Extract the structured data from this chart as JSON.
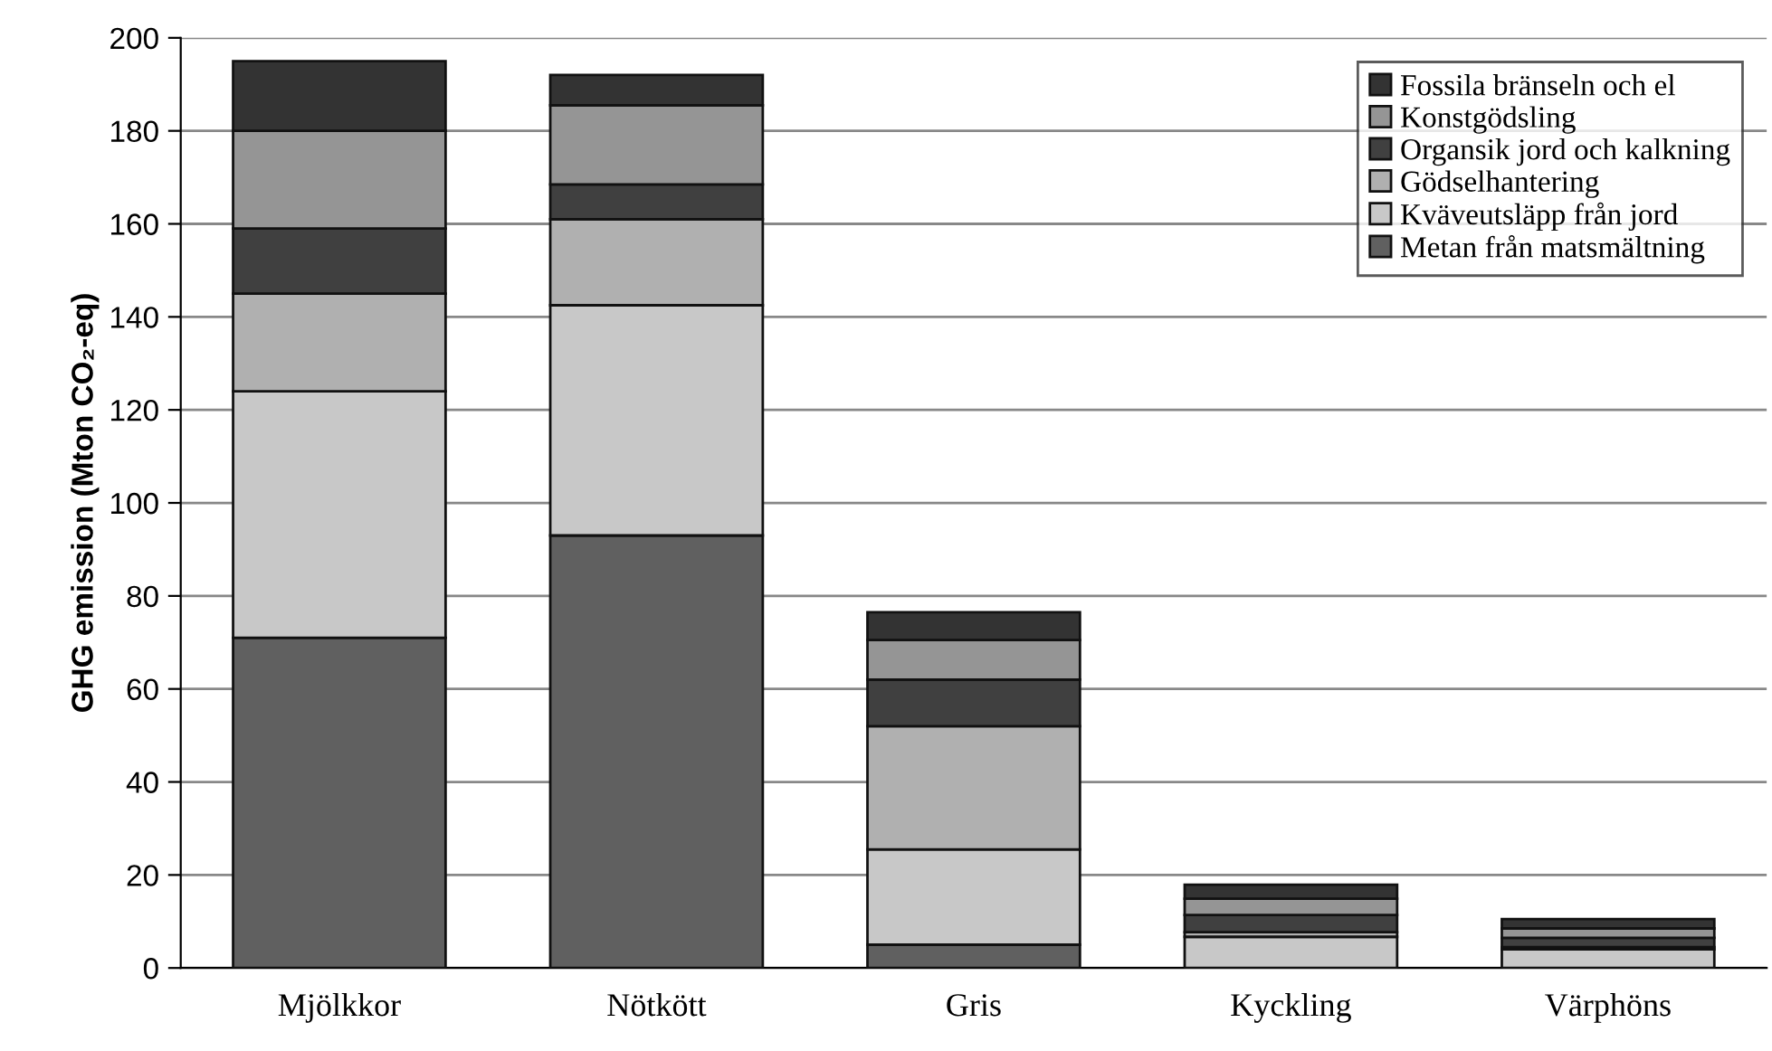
{
  "chart_data": {
    "type": "bar",
    "stacked": true,
    "ylabel": "GHG emission (Mton CO₂-eq)",
    "categories": [
      "Mjölkkor",
      "Nötkött",
      "Gris",
      "Kyckling",
      "Värphöns"
    ],
    "series": [
      {
        "name": "Metan från matsmältning",
        "color": "#606060",
        "values": [
          71,
          93,
          5,
          0,
          0
        ]
      },
      {
        "name": "Kväveutsläpp från jord",
        "color": "#c8c8c8",
        "values": [
          53,
          49.5,
          20.5,
          6.7,
          4
        ]
      },
      {
        "name": "Gödselhantering",
        "color": "#b0b0b0",
        "values": [
          21,
          18.5,
          26.5,
          1,
          0.5
        ]
      },
      {
        "name": "Organsik jord och kalkning",
        "color": "#404040",
        "values": [
          14,
          7.5,
          10,
          3.7,
          2
        ]
      },
      {
        "name": "Konstgödsling",
        "color": "#959595",
        "values": [
          21,
          17,
          8.5,
          3.5,
          2
        ]
      },
      {
        "name": "Fossila bränseln och el",
        "color": "#333333",
        "values": [
          15,
          6.5,
          6,
          3,
          2
        ]
      }
    ],
    "ylim": [
      0,
      200
    ],
    "yticks": [
      0,
      20,
      40,
      60,
      80,
      100,
      120,
      140,
      160,
      180,
      200
    ],
    "grid": "y",
    "legend": "top right"
  }
}
